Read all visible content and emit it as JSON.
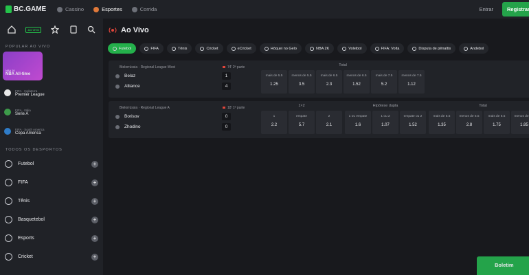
{
  "header": {
    "logo": "BC.GAME",
    "nav": [
      "Cassino",
      "Esportes",
      "Corrida"
    ],
    "login": "Entrar",
    "register": "Registrar-"
  },
  "sidebar": {
    "live_badge": "AO VIVO",
    "popular_title": "POPULAR AO VIVO",
    "featured": {
      "tag": "NBA 2K",
      "title": "NBA All-time"
    },
    "popular": [
      {
        "country": "FIFA · Inglaterra",
        "league": "Premier League"
      },
      {
        "country": "FIFA · Itália",
        "league": "Serie A"
      },
      {
        "country": "FIFA · South America",
        "league": "Copa America"
      }
    ],
    "all_title": "TODOS OS DESPORTOS",
    "sports": [
      "Futebol",
      "FIFA",
      "Tênis",
      "Basquetebol",
      "Esports",
      "Cricket"
    ]
  },
  "main": {
    "title": "Ao Vivo",
    "tabs": [
      "Futebol",
      "FIFA",
      "Tênis",
      "Cricket",
      "eCricket",
      "Hóquei no Gelo",
      "NBA 2K",
      "Voleibol",
      "FIFA: Volta",
      "Disputa de pênaltis",
      "Andebol"
    ],
    "matches": [
      {
        "league": "Bielorrússia · Regional League West",
        "time": "74' 2ª parte",
        "teams": [
          {
            "name": "Belaz",
            "score": 1
          },
          {
            "name": "Alliance",
            "score": 4
          }
        ],
        "markets": [
          {
            "title": "Total",
            "outcomes": [
              {
                "label": "mais de 5.5",
                "odd": 1.25
              },
              {
                "label": "menos de 5.5",
                "odd": 3.5
              },
              {
                "label": "mais de 6.5",
                "odd": 2.3
              },
              {
                "label": "menos de 6.5",
                "odd": 1.52
              },
              {
                "label": "mais de 7.5",
                "odd": 5.2
              },
              {
                "label": "menos de 7.5",
                "odd": 1.12
              }
            ]
          }
        ]
      },
      {
        "league": "Bielorrússia · Regional League A",
        "time": "18' 1ª parte",
        "teams": [
          {
            "name": "Borisov",
            "score": 0
          },
          {
            "name": "Zhodino",
            "score": 0
          }
        ],
        "markets": [
          {
            "title": "1×2",
            "outcomes": [
              {
                "label": "1",
                "odd": 2.2
              },
              {
                "label": "empate",
                "odd": 5.7
              },
              {
                "label": "2",
                "odd": 2.1
              }
            ]
          },
          {
            "title": "Hipótese dupla",
            "outcomes": [
              {
                "label": "1 ou empate",
                "odd": 1.6
              },
              {
                "label": "1 ou 2",
                "odd": 1.07
              },
              {
                "label": "empate ou 2",
                "odd": 1.52
              }
            ]
          },
          {
            "title": "Total",
            "outcomes": [
              {
                "label": "mais de 5.5",
                "odd": 1.35
              },
              {
                "label": "menos de 5.5",
                "odd": 2.8
              },
              {
                "label": "mais de 6.5",
                "odd": 1.75
              },
              {
                "label": "menos de 6.5",
                "odd": 1.85
              }
            ]
          }
        ]
      }
    ]
  },
  "betslip": "Boletim"
}
